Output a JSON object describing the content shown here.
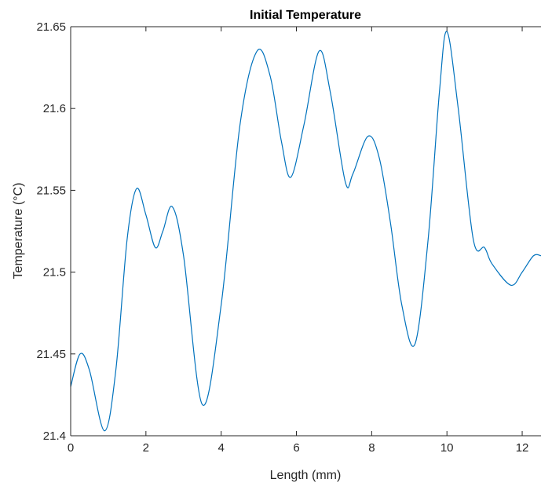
{
  "chart_data": {
    "type": "line",
    "title": "Initial Temperature",
    "xlabel": "Length (mm)",
    "ylabel": "Temperature (°C)",
    "xlim": [
      0,
      12.5
    ],
    "ylim": [
      21.4,
      21.65
    ],
    "xticks": [
      0,
      2,
      4,
      6,
      8,
      10,
      12
    ],
    "yticks": [
      21.4,
      21.45,
      21.5,
      21.55,
      21.6,
      21.65
    ],
    "ytick_labels": [
      "21.4",
      "21.45",
      "21.5",
      "21.55",
      "21.6",
      "21.65"
    ],
    "grid": false,
    "legend": "none",
    "series": [
      {
        "color": "#0072BD",
        "x": [
          0,
          0.25,
          0.5,
          0.9,
          1.2,
          1.5,
          1.75,
          2.0,
          2.25,
          2.45,
          2.7,
          3.0,
          3.5,
          4.0,
          4.5,
          4.95,
          5.3,
          5.6,
          5.85,
          6.2,
          6.6,
          6.9,
          7.3,
          7.5,
          7.9,
          8.2,
          8.5,
          8.8,
          9.15,
          9.5,
          9.8,
          10.0,
          10.3,
          10.7,
          11.0,
          11.2,
          11.7,
          12.0,
          12.3,
          12.5
        ],
        "y": [
          21.43,
          21.45,
          21.44,
          21.403,
          21.44,
          21.52,
          21.551,
          21.535,
          21.515,
          21.525,
          21.54,
          21.51,
          21.419,
          21.48,
          21.59,
          21.635,
          21.62,
          21.58,
          21.558,
          21.59,
          21.635,
          21.61,
          21.555,
          21.56,
          21.583,
          21.57,
          21.53,
          21.48,
          21.456,
          21.52,
          21.61,
          21.647,
          21.6,
          21.52,
          21.515,
          21.505,
          21.492,
          21.5,
          21.51,
          21.51
        ]
      }
    ]
  }
}
